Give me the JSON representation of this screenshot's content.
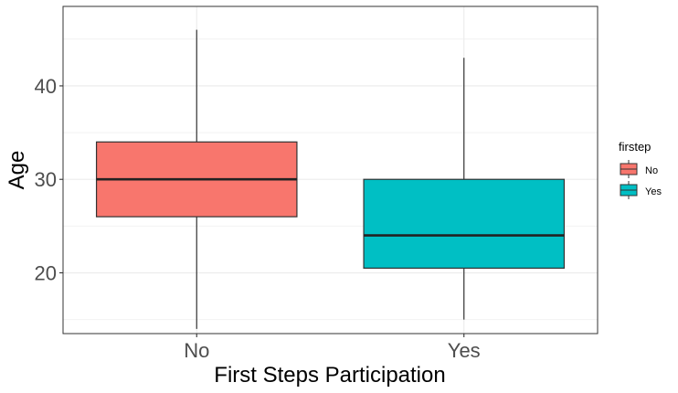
{
  "chart_data": {
    "type": "boxplot",
    "xlabel": "First Steps Participation",
    "ylabel": "Age",
    "categories": [
      "No",
      "Yes"
    ],
    "ylim": [
      13.5,
      48.5
    ],
    "y_ticks": [
      20,
      30,
      40
    ],
    "y_minor_ticks": [
      15,
      25,
      35,
      45
    ],
    "grid": true,
    "legend": {
      "title": "firstep",
      "position": "right",
      "entries": [
        "No",
        "Yes"
      ]
    },
    "colors": {
      "No": "#F8766D",
      "Yes": "#00BFC4"
    },
    "boxes": [
      {
        "category": "No",
        "min": 14,
        "q1": 26,
        "median": 30,
        "q3": 34,
        "max": 46
      },
      {
        "category": "Yes",
        "min": 15,
        "q1": 20.5,
        "median": 24,
        "q3": 30,
        "max": 43
      }
    ]
  }
}
